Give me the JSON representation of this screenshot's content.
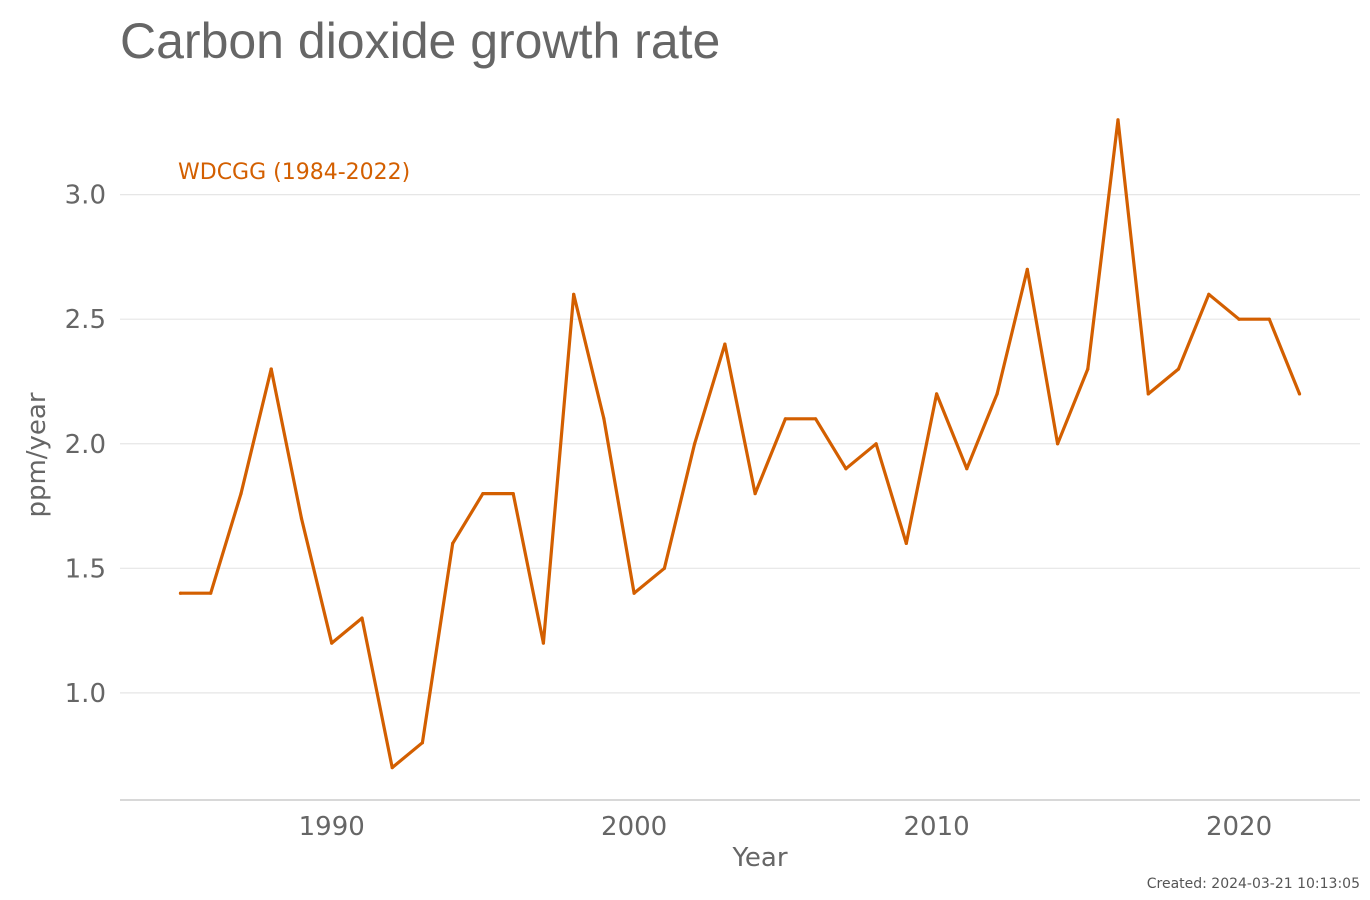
{
  "chart_data": {
    "type": "line",
    "title": "Carbon dioxide growth rate",
    "xlabel": "Year",
    "ylabel": "ppm/year",
    "xlim": [
      1983,
      2024
    ],
    "ylim": [
      0.57,
      3.42
    ],
    "x_ticks": [
      "1990",
      "2000",
      "2010",
      "2020"
    ],
    "y_ticks": [
      "1.0",
      "1.5",
      "2.0",
      "2.5",
      "3.0"
    ],
    "grid": true,
    "legend_position": "top-left",
    "series": [
      {
        "name": "WDCGG (1984-2022)",
        "color": "#d35f00",
        "x": [
          1985,
          1986,
          1987,
          1988,
          1989,
          1990,
          1991,
          1992,
          1993,
          1994,
          1995,
          1996,
          1997,
          1998,
          1999,
          2000,
          2001,
          2002,
          2003,
          2004,
          2005,
          2006,
          2007,
          2008,
          2009,
          2010,
          2011,
          2012,
          2013,
          2014,
          2015,
          2016,
          2017,
          2018,
          2019,
          2020,
          2021,
          2022
        ],
        "y": [
          1.4,
          1.4,
          1.8,
          2.3,
          1.7,
          1.2,
          1.3,
          0.7,
          0.8,
          1.6,
          1.8,
          1.8,
          1.2,
          2.6,
          2.1,
          1.4,
          1.5,
          2.0,
          2.4,
          1.8,
          2.1,
          2.1,
          1.9,
          2.0,
          1.6,
          2.2,
          1.9,
          2.2,
          2.7,
          2.0,
          2.3,
          3.3,
          2.2,
          2.3,
          2.6,
          2.5,
          2.5,
          2.2
        ]
      }
    ]
  },
  "footer": {
    "created": "Created: 2024-03-21 10:13:05"
  }
}
